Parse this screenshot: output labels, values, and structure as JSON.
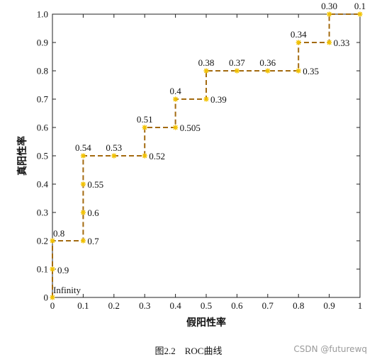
{
  "chart_data": {
    "type": "line",
    "title": "",
    "xlabel": "假阳性率",
    "ylabel": "真阳性率",
    "xlim": [
      0,
      1
    ],
    "ylim": [
      0,
      1
    ],
    "x_ticks": [
      "0",
      "0.1",
      "0.2",
      "0.3",
      "0.4",
      "0.5",
      "0.6",
      "0.7",
      "0.8",
      "0.9",
      "1"
    ],
    "y_ticks": [
      "0",
      "0.1",
      "0.2",
      "0.3",
      "0.4",
      "0.5",
      "0.6",
      "0.7",
      "0.8",
      "0.9",
      "1.0"
    ],
    "grid": false,
    "line_style": "dashed-step",
    "line_color": "#a36a10",
    "marker_color": "#f2c200",
    "points": [
      {
        "x": 0.0,
        "y": 0.0,
        "label": "Infinity",
        "pos": "above-right"
      },
      {
        "x": 0.0,
        "y": 0.1,
        "label": "0.9",
        "pos": "right-below"
      },
      {
        "x": 0.0,
        "y": 0.2,
        "label": "0.8",
        "pos": "above-right"
      },
      {
        "x": 0.1,
        "y": 0.2,
        "label": "0.7",
        "pos": "right"
      },
      {
        "x": 0.1,
        "y": 0.3,
        "label": "0.6",
        "pos": "right"
      },
      {
        "x": 0.1,
        "y": 0.4,
        "label": "0.55",
        "pos": "right"
      },
      {
        "x": 0.1,
        "y": 0.5,
        "label": "0.54",
        "pos": "above"
      },
      {
        "x": 0.2,
        "y": 0.5,
        "label": "0.53",
        "pos": "above"
      },
      {
        "x": 0.3,
        "y": 0.5,
        "label": "0.52",
        "pos": "right"
      },
      {
        "x": 0.3,
        "y": 0.6,
        "label": "0.51",
        "pos": "above"
      },
      {
        "x": 0.4,
        "y": 0.6,
        "label": "0.505",
        "pos": "right"
      },
      {
        "x": 0.4,
        "y": 0.7,
        "label": "0.4",
        "pos": "above"
      },
      {
        "x": 0.5,
        "y": 0.7,
        "label": "0.39",
        "pos": "right"
      },
      {
        "x": 0.5,
        "y": 0.8,
        "label": "0.38",
        "pos": "above"
      },
      {
        "x": 0.6,
        "y": 0.8,
        "label": "0.37",
        "pos": "above"
      },
      {
        "x": 0.7,
        "y": 0.8,
        "label": "0.36",
        "pos": "above"
      },
      {
        "x": 0.8,
        "y": 0.8,
        "label": "0.35",
        "pos": "right"
      },
      {
        "x": 0.8,
        "y": 0.9,
        "label": "0.34",
        "pos": "above"
      },
      {
        "x": 0.9,
        "y": 0.9,
        "label": "0.33",
        "pos": "right"
      },
      {
        "x": 0.9,
        "y": 1.0,
        "label": "0.30",
        "pos": "above"
      },
      {
        "x": 1.0,
        "y": 1.0,
        "label": "0.1",
        "pos": "above"
      }
    ]
  },
  "caption": "图2.2　ROC曲线",
  "watermark": "CSDN @futurewq"
}
